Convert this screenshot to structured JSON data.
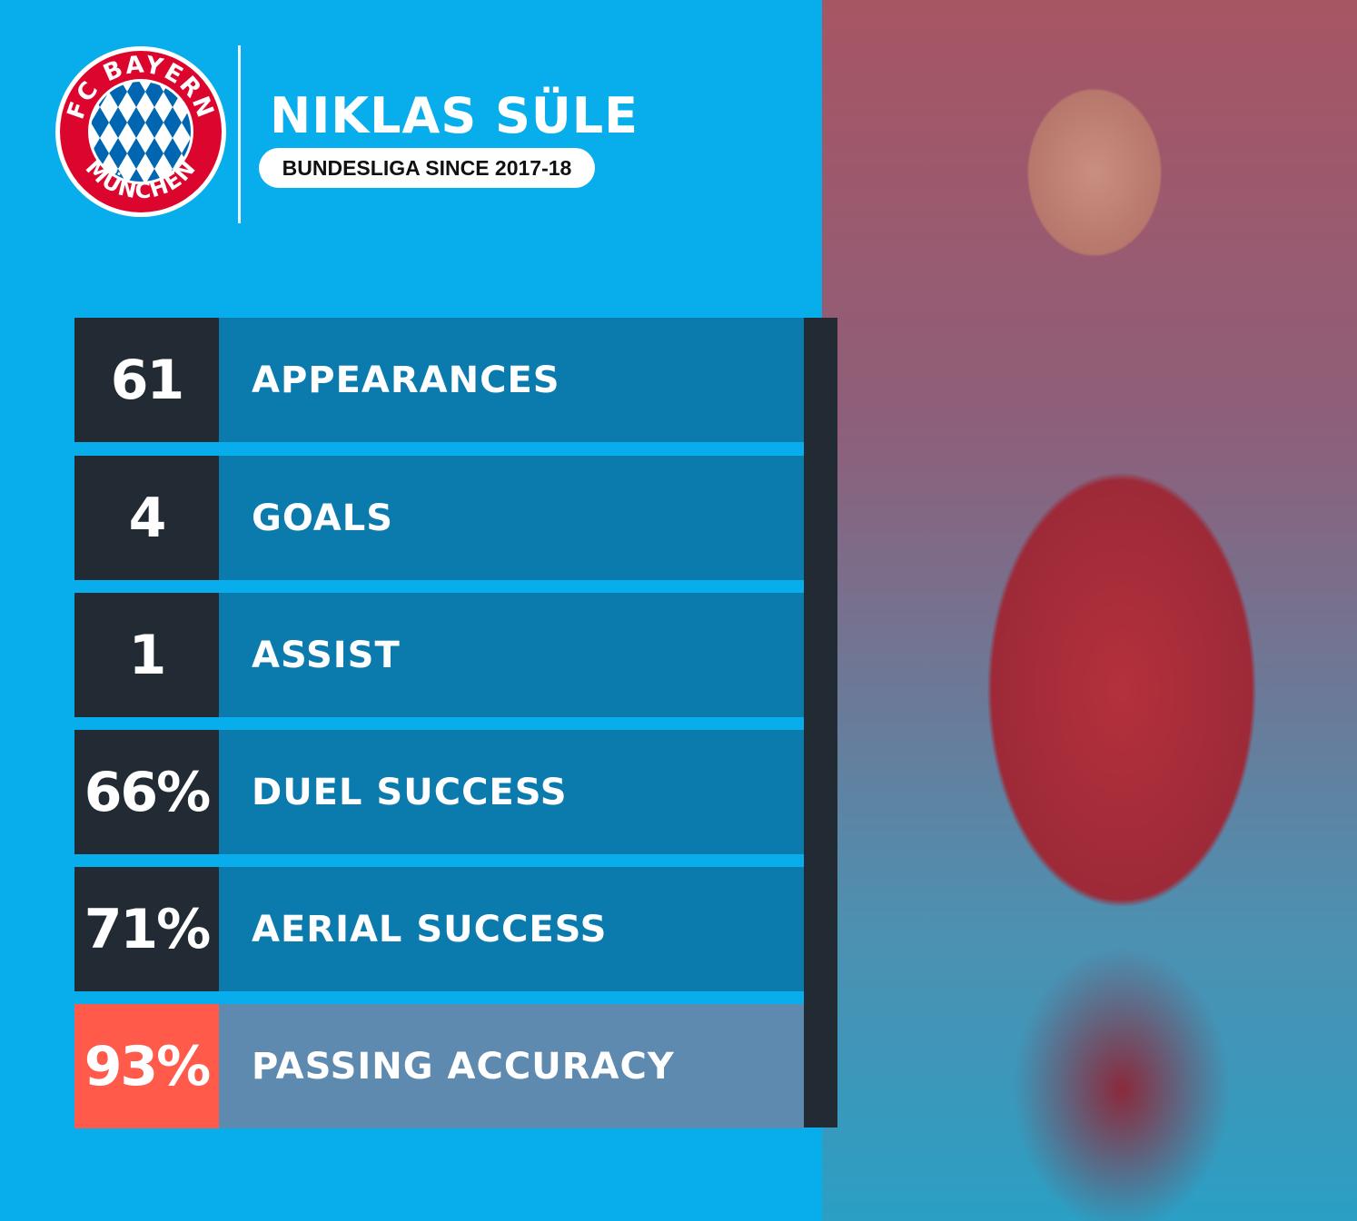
{
  "header": {
    "logo": "FC BAYERN MÜNCHEN",
    "name": "NIKLAS SÜLE",
    "subtitle": "BUNDESLIGA SINCE 2017-18"
  },
  "stats": [
    {
      "value": "61",
      "label": "APPEARANCES"
    },
    {
      "value": "4",
      "label": "GOALS"
    },
    {
      "value": "1",
      "label": "ASSIST"
    },
    {
      "value": "66%",
      "label": "DUEL SUCCESS"
    },
    {
      "value": "71%",
      "label": "AERIAL SUCCESS"
    },
    {
      "value": "93%",
      "label": "PASSING ACCURACY",
      "highlight": true
    }
  ],
  "colors": {
    "background": "#08adeb",
    "row": "#0b7aad",
    "number_cell": "#222b33",
    "highlight_number": "#ff5a4a",
    "highlight_row": "#5f8ab0"
  }
}
